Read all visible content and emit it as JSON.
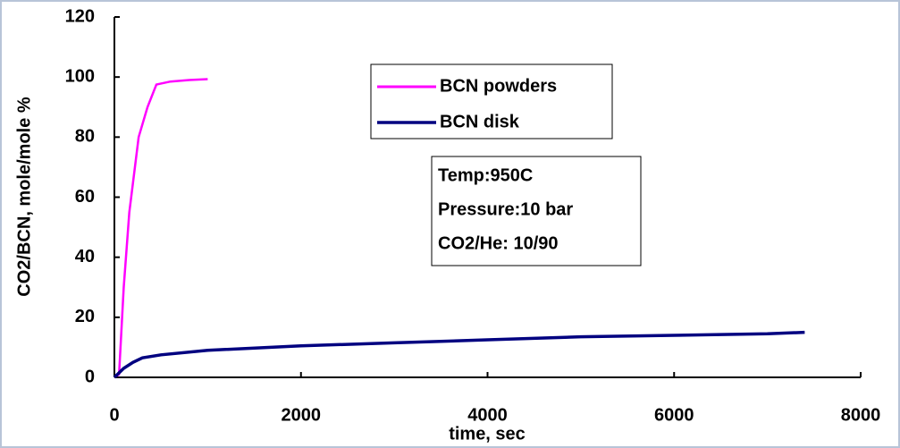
{
  "chart_data": {
    "type": "line",
    "ylabel": "CO2/BCN, mole/mole %",
    "xlabel": "time, sec",
    "xlim": [
      0,
      8000
    ],
    "xticks": [
      0,
      2000,
      4000,
      6000,
      8000
    ],
    "ylim": [
      0,
      120
    ],
    "yticks": [
      0,
      20,
      40,
      60,
      80,
      100,
      120
    ],
    "series": [
      {
        "name": "BCN powders",
        "color": "#ff00ff",
        "x": [
          0,
          50,
          100,
          160,
          260,
          355,
          450,
          600,
          800,
          1000
        ],
        "values": [
          0,
          1,
          30,
          55,
          80,
          90,
          97.5,
          98.5,
          99,
          99.3
        ]
      },
      {
        "name": "BCN disk",
        "color": "#000080",
        "x": [
          0,
          100,
          200,
          300,
          500,
          1000,
          2000,
          3000,
          4000,
          5000,
          6000,
          7000,
          7400
        ],
        "values": [
          0,
          3,
          5,
          6.5,
          7.5,
          9,
          10.5,
          11.5,
          12.5,
          13.5,
          14,
          14.5,
          15
        ]
      }
    ],
    "annotation": [
      "Temp:950C",
      "Pressure:10 bar",
      "CO2/He: 10/90"
    ]
  }
}
